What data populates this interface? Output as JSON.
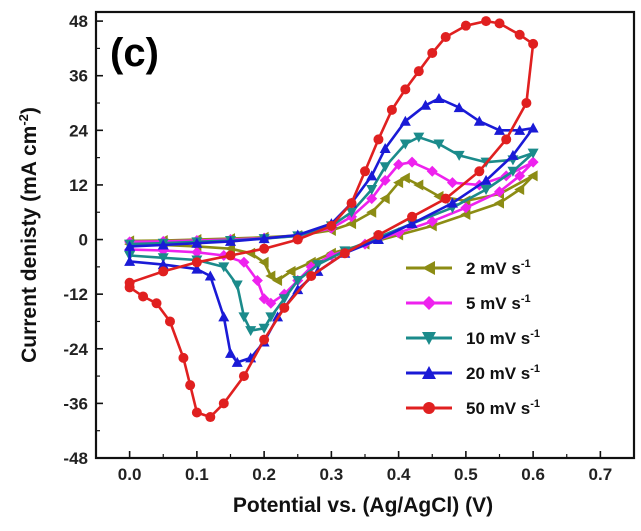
{
  "chart_data": {
    "type": "line",
    "panel_label": "(c)",
    "xlabel": "Potential vs. (Ag/AgCl) (V)",
    "ylabel": {
      "main": "Current denisty (mA cm",
      "sup": "-2",
      "close": ")"
    },
    "xlim": [
      -0.05,
      0.75
    ],
    "ylim": [
      -48,
      50
    ],
    "x_ticks": [
      "0.0",
      "0.1",
      "0.2",
      "0.3",
      "0.4",
      "0.5",
      "0.6",
      "0.7"
    ],
    "y_ticks": [
      "-48",
      "-36",
      "-24",
      "-12",
      "0",
      "12",
      "24",
      "36",
      "48"
    ],
    "legend_position": "bottom-right",
    "series": [
      {
        "name": "2 mV s",
        "sup": "-1",
        "color": "#8c8c14",
        "marker": "triangle-left",
        "points": [
          [
            0.0,
            -0.3
          ],
          [
            0.05,
            -0.2
          ],
          [
            0.1,
            0.0
          ],
          [
            0.15,
            0.2
          ],
          [
            0.2,
            0.5
          ],
          [
            0.25,
            0.9
          ],
          [
            0.3,
            2.0
          ],
          [
            0.33,
            3.5
          ],
          [
            0.36,
            6.0
          ],
          [
            0.38,
            9.0
          ],
          [
            0.4,
            12.5
          ],
          [
            0.41,
            13.5
          ],
          [
            0.43,
            12.0
          ],
          [
            0.46,
            9.5
          ],
          [
            0.5,
            8.5
          ],
          [
            0.55,
            10.0
          ],
          [
            0.6,
            14.0
          ],
          [
            0.58,
            11.0
          ],
          [
            0.55,
            8.0
          ],
          [
            0.5,
            5.5
          ],
          [
            0.45,
            3.0
          ],
          [
            0.4,
            1.0
          ],
          [
            0.35,
            -1.0
          ],
          [
            0.3,
            -3.0
          ],
          [
            0.27,
            -5.0
          ],
          [
            0.24,
            -7.0
          ],
          [
            0.22,
            -9.0
          ],
          [
            0.21,
            -8.0
          ],
          [
            0.2,
            -5.0
          ],
          [
            0.18,
            -3.0
          ],
          [
            0.15,
            -2.0
          ],
          [
            0.1,
            -1.5
          ],
          [
            0.05,
            -1.2
          ],
          [
            0.0,
            -1.0
          ]
        ]
      },
      {
        "name": "5 mV s",
        "sup": "-1",
        "color": "#ee22ee",
        "marker": "diamond",
        "points": [
          [
            0.0,
            -0.5
          ],
          [
            0.05,
            -0.4
          ],
          [
            0.1,
            -0.2
          ],
          [
            0.15,
            0.0
          ],
          [
            0.2,
            0.3
          ],
          [
            0.25,
            0.8
          ],
          [
            0.3,
            2.5
          ],
          [
            0.33,
            5.0
          ],
          [
            0.36,
            9.0
          ],
          [
            0.38,
            13.0
          ],
          [
            0.4,
            16.5
          ],
          [
            0.42,
            17.0
          ],
          [
            0.45,
            15.0
          ],
          [
            0.48,
            12.5
          ],
          [
            0.52,
            12.0
          ],
          [
            0.56,
            14.0
          ],
          [
            0.6,
            17.0
          ],
          [
            0.58,
            14.0
          ],
          [
            0.55,
            10.5
          ],
          [
            0.5,
            7.0
          ],
          [
            0.45,
            4.0
          ],
          [
            0.4,
            1.5
          ],
          [
            0.35,
            -1.0
          ],
          [
            0.3,
            -3.5
          ],
          [
            0.27,
            -6.0
          ],
          [
            0.25,
            -9.0
          ],
          [
            0.23,
            -12.0
          ],
          [
            0.21,
            -14.0
          ],
          [
            0.2,
            -13.0
          ],
          [
            0.19,
            -9.0
          ],
          [
            0.17,
            -5.0
          ],
          [
            0.14,
            -3.5
          ],
          [
            0.1,
            -2.8
          ],
          [
            0.05,
            -2.4
          ],
          [
            0.0,
            -2.2
          ]
        ]
      },
      {
        "name": "10 mV s",
        "sup": "-1",
        "color": "#1b8b8b",
        "marker": "triangle-down",
        "points": [
          [
            0.0,
            -1.0
          ],
          [
            0.05,
            -0.8
          ],
          [
            0.1,
            -0.5
          ],
          [
            0.15,
            -0.2
          ],
          [
            0.2,
            0.2
          ],
          [
            0.25,
            0.8
          ],
          [
            0.3,
            3.0
          ],
          [
            0.33,
            6.0
          ],
          [
            0.36,
            11.0
          ],
          [
            0.38,
            16.0
          ],
          [
            0.41,
            21.0
          ],
          [
            0.43,
            22.5
          ],
          [
            0.46,
            21.0
          ],
          [
            0.49,
            18.5
          ],
          [
            0.53,
            17.0
          ],
          [
            0.57,
            17.5
          ],
          [
            0.6,
            19.0
          ],
          [
            0.57,
            15.0
          ],
          [
            0.53,
            11.0
          ],
          [
            0.48,
            7.0
          ],
          [
            0.42,
            3.5
          ],
          [
            0.37,
            0.5
          ],
          [
            0.32,
            -2.5
          ],
          [
            0.28,
            -5.5
          ],
          [
            0.25,
            -9.0
          ],
          [
            0.23,
            -13.0
          ],
          [
            0.21,
            -17.0
          ],
          [
            0.2,
            -19.5
          ],
          [
            0.18,
            -20.0
          ],
          [
            0.17,
            -17.0
          ],
          [
            0.16,
            -10.0
          ],
          [
            0.14,
            -6.0
          ],
          [
            0.1,
            -4.5
          ],
          [
            0.05,
            -4.0
          ],
          [
            0.0,
            -3.5
          ]
        ]
      },
      {
        "name": "20 mV s",
        "sup": "-1",
        "color": "#1a1ad6",
        "marker": "triangle-up",
        "points": [
          [
            0.0,
            -1.5
          ],
          [
            0.05,
            -1.2
          ],
          [
            0.1,
            -0.8
          ],
          [
            0.15,
            -0.4
          ],
          [
            0.2,
            0.2
          ],
          [
            0.25,
            1.0
          ],
          [
            0.3,
            3.5
          ],
          [
            0.33,
            8.0
          ],
          [
            0.36,
            14.0
          ],
          [
            0.38,
            20.0
          ],
          [
            0.41,
            26.0
          ],
          [
            0.44,
            29.5
          ],
          [
            0.46,
            31.0
          ],
          [
            0.49,
            29.0
          ],
          [
            0.52,
            26.0
          ],
          [
            0.55,
            24.0
          ],
          [
            0.58,
            24.0
          ],
          [
            0.6,
            24.5
          ],
          [
            0.57,
            18.5
          ],
          [
            0.53,
            13.0
          ],
          [
            0.48,
            8.0
          ],
          [
            0.42,
            3.5
          ],
          [
            0.37,
            0.0
          ],
          [
            0.32,
            -3.0
          ],
          [
            0.28,
            -7.0
          ],
          [
            0.25,
            -11.0
          ],
          [
            0.22,
            -17.0
          ],
          [
            0.2,
            -22.5
          ],
          [
            0.18,
            -26.0
          ],
          [
            0.16,
            -27.0
          ],
          [
            0.15,
            -25.0
          ],
          [
            0.14,
            -17.0
          ],
          [
            0.12,
            -8.0
          ],
          [
            0.1,
            -6.5
          ],
          [
            0.05,
            -5.5
          ],
          [
            0.0,
            -4.8
          ]
        ]
      },
      {
        "name": "50 mV s",
        "sup": "-1",
        "color": "#e02020",
        "marker": "circle",
        "points": [
          [
            0.0,
            -9.5
          ],
          [
            0.05,
            -7.0
          ],
          [
            0.1,
            -5.0
          ],
          [
            0.15,
            -3.5
          ],
          [
            0.2,
            -2.0
          ],
          [
            0.25,
            0.0
          ],
          [
            0.3,
            3.0
          ],
          [
            0.33,
            8.0
          ],
          [
            0.35,
            15.0
          ],
          [
            0.37,
            22.0
          ],
          [
            0.39,
            28.5
          ],
          [
            0.41,
            33.0
          ],
          [
            0.43,
            37.0
          ],
          [
            0.45,
            41.0
          ],
          [
            0.47,
            44.5
          ],
          [
            0.5,
            47.0
          ],
          [
            0.53,
            48.0
          ],
          [
            0.55,
            47.5
          ],
          [
            0.58,
            45.0
          ],
          [
            0.6,
            43.0
          ],
          [
            0.59,
            30.0
          ],
          [
            0.56,
            22.0
          ],
          [
            0.52,
            15.0
          ],
          [
            0.47,
            9.0
          ],
          [
            0.42,
            5.0
          ],
          [
            0.37,
            1.0
          ],
          [
            0.32,
            -3.0
          ],
          [
            0.27,
            -8.0
          ],
          [
            0.23,
            -15.0
          ],
          [
            0.2,
            -22.0
          ],
          [
            0.17,
            -30.0
          ],
          [
            0.14,
            -36.0
          ],
          [
            0.12,
            -39.0
          ],
          [
            0.1,
            -38.0
          ],
          [
            0.09,
            -32.0
          ],
          [
            0.08,
            -26.0
          ],
          [
            0.06,
            -18.0
          ],
          [
            0.04,
            -14.0
          ],
          [
            0.02,
            -12.5
          ],
          [
            0.0,
            -10.5
          ]
        ]
      }
    ]
  }
}
